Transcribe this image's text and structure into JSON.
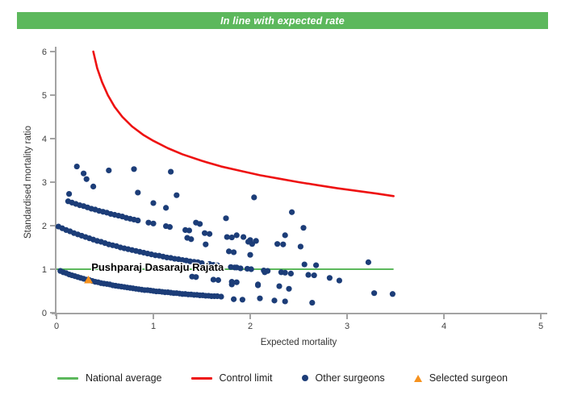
{
  "banner": {
    "text": "In line with expected rate",
    "background": "#5cb85c",
    "text_color": "#ffffff"
  },
  "legend": [
    {
      "label": "National average",
      "type": "line",
      "color": "#5cb85c"
    },
    {
      "label": "Control limit",
      "type": "line",
      "color": "#ee1111"
    },
    {
      "label": "Other surgeons",
      "type": "dot",
      "color": "#1c3d78"
    },
    {
      "label": "Selected surgeon",
      "type": "triangle",
      "color": "#f6921e"
    }
  ],
  "chart_data": {
    "type": "scatter",
    "xlabel": "Expected mortality",
    "ylabel": "Standardised mortality ratio",
    "xlim": [
      0,
      5
    ],
    "ylim": [
      0,
      6
    ],
    "xticks": [
      0,
      1,
      2,
      3,
      4,
      5
    ],
    "yticks": [
      0,
      1,
      2,
      3,
      4,
      5,
      6
    ],
    "grid": false,
    "axis_color": "#a3a3a3",
    "tick_label_color": "#404040",
    "national_average": {
      "y": 1,
      "x_start": 0,
      "x_end": 3.48,
      "color": "#5cb85c"
    },
    "control_limit": {
      "color": "#ee1111",
      "points": [
        [
          0.38,
          6.0
        ],
        [
          0.42,
          5.62
        ],
        [
          0.47,
          5.3
        ],
        [
          0.53,
          5.0
        ],
        [
          0.6,
          4.73
        ],
        [
          0.68,
          4.5
        ],
        [
          0.78,
          4.28
        ],
        [
          0.9,
          4.08
        ],
        [
          1.0,
          3.95
        ],
        [
          1.15,
          3.78
        ],
        [
          1.3,
          3.64
        ],
        [
          1.5,
          3.49
        ],
        [
          1.7,
          3.36
        ],
        [
          1.9,
          3.26
        ],
        [
          2.1,
          3.16
        ],
        [
          2.3,
          3.08
        ],
        [
          2.5,
          3.0
        ],
        [
          2.7,
          2.93
        ],
        [
          2.9,
          2.86
        ],
        [
          3.1,
          2.8
        ],
        [
          3.3,
          2.74
        ],
        [
          3.48,
          2.68
        ]
      ]
    },
    "other_surgeons": {
      "color": "#1c3d78",
      "marker_radius": 3.6,
      "points": [
        [
          0.04,
          0.96
        ],
        [
          0.07,
          0.93
        ],
        [
          0.1,
          0.91
        ],
        [
          0.13,
          0.88
        ],
        [
          0.16,
          0.86
        ],
        [
          0.19,
          0.84
        ],
        [
          0.22,
          0.82
        ],
        [
          0.25,
          0.8
        ],
        [
          0.28,
          0.78
        ],
        [
          0.31,
          0.76
        ],
        [
          0.34,
          0.75
        ],
        [
          0.37,
          0.73
        ],
        [
          0.4,
          0.71
        ],
        [
          0.43,
          0.7
        ],
        [
          0.46,
          0.68
        ],
        [
          0.49,
          0.67
        ],
        [
          0.52,
          0.66
        ],
        [
          0.55,
          0.65
        ],
        [
          0.58,
          0.63
        ],
        [
          0.61,
          0.62
        ],
        [
          0.64,
          0.61
        ],
        [
          0.67,
          0.6
        ],
        [
          0.7,
          0.59
        ],
        [
          0.73,
          0.58
        ],
        [
          0.76,
          0.57
        ],
        [
          0.79,
          0.56
        ],
        [
          0.82,
          0.55
        ],
        [
          0.85,
          0.54
        ],
        [
          0.88,
          0.53
        ],
        [
          0.91,
          0.52
        ],
        [
          0.94,
          0.52
        ],
        [
          0.97,
          0.51
        ],
        [
          1.0,
          0.5
        ],
        [
          1.03,
          0.49
        ],
        [
          1.06,
          0.49
        ],
        [
          1.09,
          0.48
        ],
        [
          1.12,
          0.47
        ],
        [
          1.15,
          0.47
        ],
        [
          1.18,
          0.46
        ],
        [
          1.21,
          0.45
        ],
        [
          1.24,
          0.45
        ],
        [
          1.27,
          0.44
        ],
        [
          1.3,
          0.43
        ],
        [
          1.33,
          0.43
        ],
        [
          1.36,
          0.42
        ],
        [
          1.39,
          0.42
        ],
        [
          1.42,
          0.41
        ],
        [
          1.45,
          0.41
        ],
        [
          1.48,
          0.4
        ],
        [
          1.51,
          0.4
        ],
        [
          1.54,
          0.39
        ],
        [
          1.57,
          0.39
        ],
        [
          1.6,
          0.38
        ],
        [
          1.63,
          0.38
        ],
        [
          1.66,
          0.38
        ],
        [
          1.7,
          0.37
        ],
        [
          0.02,
          1.98
        ],
        [
          0.06,
          1.94
        ],
        [
          0.1,
          1.9
        ],
        [
          0.14,
          1.87
        ],
        [
          0.18,
          1.83
        ],
        [
          0.22,
          1.8
        ],
        [
          0.26,
          1.77
        ],
        [
          0.3,
          1.74
        ],
        [
          0.34,
          1.71
        ],
        [
          0.38,
          1.68
        ],
        [
          0.42,
          1.65
        ],
        [
          0.46,
          1.63
        ],
        [
          0.5,
          1.6
        ],
        [
          0.54,
          1.57
        ],
        [
          0.58,
          1.55
        ],
        [
          0.62,
          1.53
        ],
        [
          0.66,
          1.5
        ],
        [
          0.7,
          1.48
        ],
        [
          0.74,
          1.46
        ],
        [
          0.78,
          1.44
        ],
        [
          0.82,
          1.42
        ],
        [
          0.86,
          1.4
        ],
        [
          0.9,
          1.38
        ],
        [
          0.94,
          1.36
        ],
        [
          0.98,
          1.34
        ],
        [
          1.02,
          1.32
        ],
        [
          1.06,
          1.31
        ],
        [
          1.1,
          1.29
        ],
        [
          1.14,
          1.27
        ],
        [
          1.18,
          1.26
        ],
        [
          1.22,
          1.24
        ],
        [
          1.26,
          1.23
        ],
        [
          1.3,
          1.21
        ],
        [
          1.34,
          1.2
        ],
        [
          1.38,
          1.18
        ],
        [
          1.42,
          1.17
        ],
        [
          1.46,
          1.16
        ],
        [
          1.5,
          1.14
        ],
        [
          1.58,
          1.12
        ],
        [
          1.62,
          1.1
        ],
        [
          1.66,
          1.09
        ],
        [
          1.8,
          1.05
        ],
        [
          1.84,
          1.04
        ],
        [
          1.97,
          1.01
        ],
        [
          2.01,
          1.0
        ],
        [
          2.14,
          0.97
        ],
        [
          2.18,
          0.96
        ],
        [
          2.32,
          0.93
        ],
        [
          2.36,
          0.92
        ],
        [
          2.42,
          0.9
        ],
        [
          2.6,
          0.87
        ],
        [
          2.66,
          0.86
        ],
        [
          1.4,
          0.83
        ],
        [
          1.44,
          0.82
        ],
        [
          1.62,
          0.76
        ],
        [
          1.67,
          0.75
        ],
        [
          1.81,
          0.71
        ],
        [
          1.86,
          0.7
        ],
        [
          2.08,
          0.65
        ],
        [
          2.3,
          0.61
        ],
        [
          0.12,
          2.56
        ],
        [
          0.16,
          2.53
        ],
        [
          0.2,
          2.5
        ],
        [
          0.24,
          2.47
        ],
        [
          0.28,
          2.45
        ],
        [
          0.32,
          2.42
        ],
        [
          0.36,
          2.39
        ],
        [
          0.4,
          2.37
        ],
        [
          0.44,
          2.34
        ],
        [
          0.48,
          2.32
        ],
        [
          0.52,
          2.3
        ],
        [
          0.56,
          2.27
        ],
        [
          0.6,
          2.25
        ],
        [
          0.64,
          2.23
        ],
        [
          0.68,
          2.21
        ],
        [
          0.72,
          2.18
        ],
        [
          0.76,
          2.16
        ],
        [
          0.8,
          2.14
        ],
        [
          0.84,
          2.12
        ],
        [
          0.95,
          2.07
        ],
        [
          1.0,
          2.05
        ],
        [
          1.13,
          1.99
        ],
        [
          1.17,
          1.97
        ],
        [
          1.33,
          1.9
        ],
        [
          1.37,
          1.89
        ],
        [
          1.53,
          1.83
        ],
        [
          1.58,
          1.81
        ],
        [
          1.76,
          1.74
        ],
        [
          1.81,
          1.73
        ],
        [
          2.0,
          1.67
        ],
        [
          2.06,
          1.65
        ],
        [
          2.28,
          1.58
        ],
        [
          2.34,
          1.57
        ],
        [
          2.52,
          1.52
        ],
        [
          0.21,
          3.36
        ],
        [
          0.28,
          3.2
        ],
        [
          0.31,
          3.07
        ],
        [
          0.38,
          2.9
        ],
        [
          0.54,
          3.27
        ],
        [
          0.8,
          3.3
        ],
        [
          1.18,
          3.24
        ],
        [
          0.13,
          2.73
        ],
        [
          0.84,
          2.76
        ],
        [
          1.0,
          2.52
        ],
        [
          1.13,
          2.41
        ],
        [
          1.24,
          2.7
        ],
        [
          1.44,
          2.07
        ],
        [
          1.48,
          2.04
        ],
        [
          1.75,
          2.17
        ],
        [
          2.04,
          2.65
        ],
        [
          2.43,
          2.31
        ],
        [
          2.36,
          1.78
        ],
        [
          1.86,
          1.78
        ],
        [
          1.93,
          1.74
        ],
        [
          1.98,
          1.63
        ],
        [
          1.35,
          1.72
        ],
        [
          1.39,
          1.69
        ],
        [
          1.54,
          1.57
        ],
        [
          2.55,
          1.95
        ],
        [
          1.78,
          1.41
        ],
        [
          1.83,
          1.39
        ],
        [
          2.0,
          1.33
        ],
        [
          2.02,
          1.58
        ],
        [
          1.86,
          1.04
        ],
        [
          1.9,
          1.02
        ],
        [
          2.56,
          1.11
        ],
        [
          2.68,
          1.09
        ],
        [
          3.22,
          1.16
        ],
        [
          2.15,
          0.93
        ],
        [
          2.82,
          0.8
        ],
        [
          2.92,
          0.74
        ],
        [
          1.81,
          0.65
        ],
        [
          2.08,
          0.63
        ],
        [
          2.4,
          0.55
        ],
        [
          1.83,
          0.31
        ],
        [
          1.92,
          0.3
        ],
        [
          2.1,
          0.33
        ],
        [
          2.25,
          0.28
        ],
        [
          2.36,
          0.26
        ],
        [
          2.64,
          0.23
        ],
        [
          3.28,
          0.45
        ],
        [
          3.47,
          0.43
        ]
      ]
    },
    "selected_surgeon": {
      "name": "Pushparaj Dasaraju Rajata",
      "x": 0.33,
      "y": 0.75,
      "color": "#f6921e",
      "label_x": 0.36,
      "label_y": 1.04
    }
  }
}
